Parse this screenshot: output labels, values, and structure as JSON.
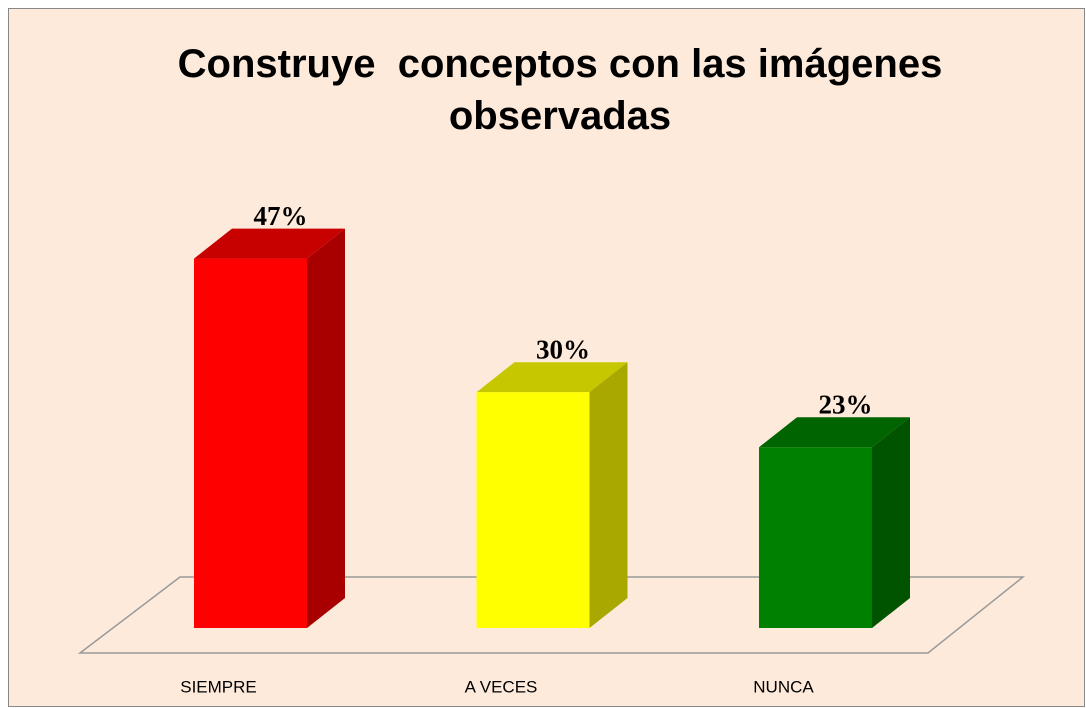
{
  "chart_data": {
    "type": "bar3d",
    "title": "Construye  conceptos con las imágenes observadas",
    "categories": [
      "SIEMPRE",
      "A VECES",
      "NUNCA"
    ],
    "values": [
      47,
      30,
      23
    ],
    "value_labels": [
      "47%",
      "30%",
      "23%"
    ],
    "colors": [
      "#ff0000",
      "#ffff00",
      "#008000"
    ]
  }
}
